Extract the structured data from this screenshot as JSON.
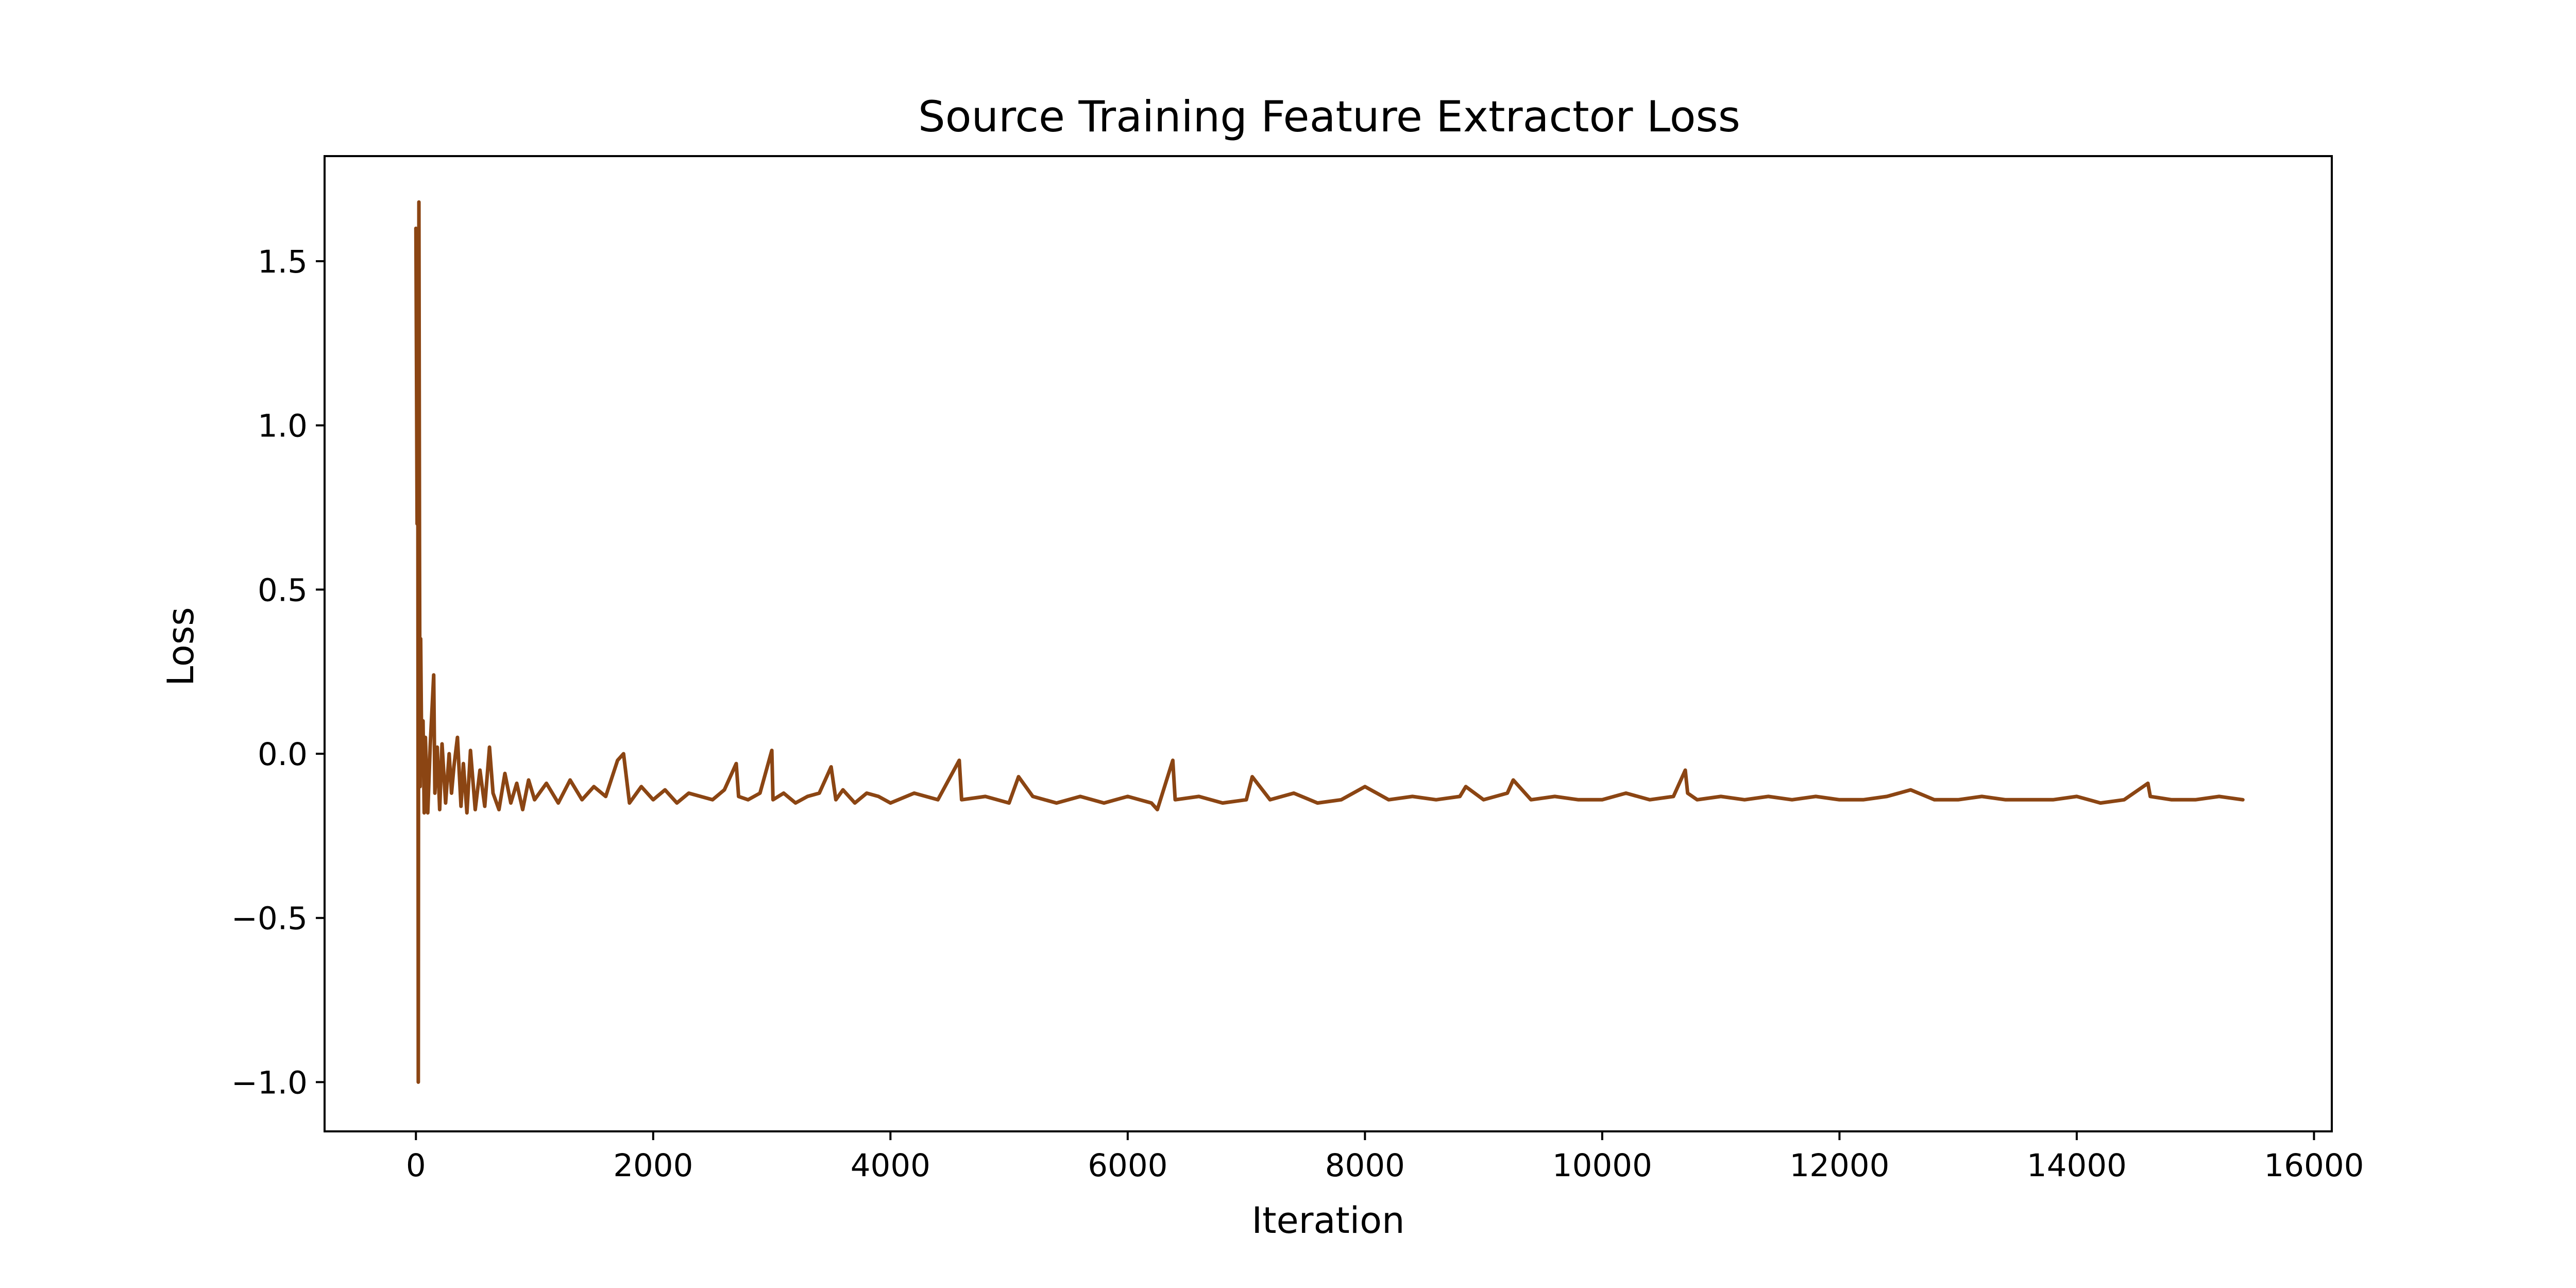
{
  "chart_data": {
    "type": "line",
    "title": "Source Training Feature Extractor Loss",
    "xlabel": "Iteration",
    "ylabel": "Loss",
    "xlim": [
      -770,
      16150
    ],
    "ylim": [
      -1.15,
      1.82
    ],
    "xticks": [
      0,
      2000,
      4000,
      6000,
      8000,
      10000,
      12000,
      14000,
      16000
    ],
    "xtick_labels": [
      "0",
      "2000",
      "4000",
      "6000",
      "8000",
      "10000",
      "12000",
      "14000",
      "16000"
    ],
    "yticks": [
      -1.0,
      -0.5,
      0.0,
      0.5,
      1.0,
      1.5
    ],
    "ytick_labels": [
      "−1.0",
      "−0.5",
      "0.0",
      "0.5",
      "1.0",
      "1.5"
    ],
    "grid": false,
    "legend": "none",
    "series": [
      {
        "color": "#8B4513",
        "x": [
          0,
          5,
          10,
          15,
          20,
          25,
          30,
          35,
          40,
          50,
          60,
          70,
          80,
          100,
          120,
          150,
          160,
          180,
          200,
          220,
          250,
          280,
          300,
          320,
          350,
          380,
          400,
          430,
          460,
          500,
          540,
          580,
          620,
          650,
          700,
          750,
          800,
          850,
          900,
          950,
          1000,
          1100,
          1200,
          1300,
          1400,
          1500,
          1600,
          1700,
          1750,
          1800,
          1900,
          2000,
          2100,
          2200,
          2300,
          2400,
          2500,
          2600,
          2700,
          2720,
          2800,
          2900,
          3000,
          3010,
          3100,
          3200,
          3300,
          3400,
          3500,
          3540,
          3600,
          3700,
          3800,
          3900,
          4000,
          4200,
          4400,
          4580,
          4600,
          4800,
          5000,
          5080,
          5200,
          5400,
          5600,
          5800,
          6000,
          6200,
          6250,
          6380,
          6400,
          6600,
          6800,
          7000,
          7050,
          7200,
          7400,
          7600,
          7800,
          8000,
          8200,
          8400,
          8600,
          8800,
          8850,
          9000,
          9200,
          9250,
          9400,
          9600,
          9800,
          10000,
          10200,
          10400,
          10600,
          10700,
          10720,
          10800,
          11000,
          11200,
          11400,
          11600,
          11800,
          12000,
          12200,
          12400,
          12600,
          12800,
          13000,
          13200,
          13400,
          13600,
          13800,
          14000,
          14200,
          14400,
          14600,
          14620,
          14800,
          15000,
          15200,
          15400
        ],
        "y": [
          1.6,
          1.15,
          0.7,
          1.55,
          -1.0,
          1.68,
          0.65,
          -0.1,
          0.35,
          -0.05,
          0.1,
          -0.18,
          0.05,
          -0.18,
          0.02,
          0.24,
          -0.12,
          0.02,
          -0.17,
          0.03,
          -0.15,
          0.0,
          -0.12,
          -0.04,
          0.05,
          -0.16,
          -0.03,
          -0.18,
          0.01,
          -0.17,
          -0.05,
          -0.16,
          0.02,
          -0.12,
          -0.17,
          -0.06,
          -0.15,
          -0.09,
          -0.17,
          -0.08,
          -0.14,
          -0.09,
          -0.15,
          -0.08,
          -0.14,
          -0.1,
          -0.13,
          -0.02,
          0.0,
          -0.15,
          -0.1,
          -0.14,
          -0.11,
          -0.15,
          -0.12,
          -0.13,
          -0.14,
          -0.11,
          -0.03,
          -0.13,
          -0.14,
          -0.12,
          0.01,
          -0.14,
          -0.12,
          -0.15,
          -0.13,
          -0.12,
          -0.04,
          -0.14,
          -0.11,
          -0.15,
          -0.12,
          -0.13,
          -0.15,
          -0.12,
          -0.14,
          -0.02,
          -0.14,
          -0.13,
          -0.15,
          -0.07,
          -0.13,
          -0.15,
          -0.13,
          -0.15,
          -0.13,
          -0.15,
          -0.17,
          -0.02,
          -0.14,
          -0.13,
          -0.15,
          -0.14,
          -0.07,
          -0.14,
          -0.12,
          -0.15,
          -0.14,
          -0.1,
          -0.14,
          -0.13,
          -0.14,
          -0.13,
          -0.1,
          -0.14,
          -0.12,
          -0.08,
          -0.14,
          -0.13,
          -0.14,
          -0.14,
          -0.12,
          -0.14,
          -0.13,
          -0.05,
          -0.12,
          -0.14,
          -0.13,
          -0.14,
          -0.13,
          -0.14,
          -0.13,
          -0.14,
          -0.14,
          -0.13,
          -0.11,
          -0.14,
          -0.14,
          -0.13,
          -0.14,
          -0.14,
          -0.14,
          -0.13,
          -0.15,
          -0.14,
          -0.09,
          -0.13,
          -0.14,
          -0.14,
          -0.13,
          -0.14
        ]
      }
    ]
  }
}
